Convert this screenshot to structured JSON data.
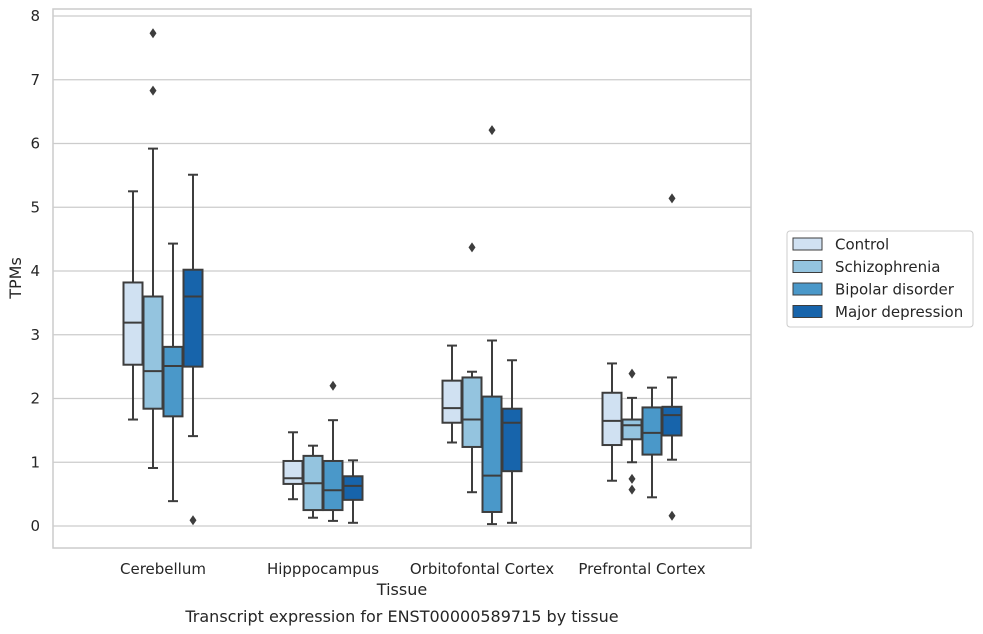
{
  "caption": "Transcript expression for ENST00000589715 by tissue",
  "chart_data": {
    "type": "box",
    "xlabel": "Tissue",
    "ylabel": "TPMs",
    "ylim": [
      -0.35,
      8.1
    ],
    "yticks": [
      "0",
      "1",
      "2",
      "3",
      "4",
      "5",
      "6",
      "7",
      "8"
    ],
    "grid": "horizontal",
    "legend_position": "right",
    "categories": [
      "Cerebellum",
      "Hipppocampus",
      "Orbitofontal Cortex",
      "Prefrontal Cortex"
    ],
    "series": [
      {
        "name": "Control",
        "color": "#d0e1f2",
        "boxes": [
          {
            "whislo": 1.67,
            "q1": 2.53,
            "med": 3.19,
            "q3": 3.82,
            "whishi": 5.25,
            "fliers": []
          },
          {
            "whislo": 0.42,
            "q1": 0.66,
            "med": 0.75,
            "q3": 1.02,
            "whishi": 1.47,
            "fliers": []
          },
          {
            "whislo": 1.31,
            "q1": 1.62,
            "med": 1.85,
            "q3": 2.28,
            "whishi": 2.83,
            "fliers": []
          },
          {
            "whislo": 0.71,
            "q1": 1.27,
            "med": 1.65,
            "q3": 2.09,
            "whishi": 2.55,
            "fliers": []
          }
        ]
      },
      {
        "name": "Schizophrenia",
        "color": "#94c4df",
        "boxes": [
          {
            "whislo": 0.91,
            "q1": 1.84,
            "med": 2.43,
            "q3": 3.6,
            "whishi": 5.92,
            "fliers": [
              6.83,
              7.73
            ]
          },
          {
            "whislo": 0.13,
            "q1": 0.25,
            "med": 0.67,
            "q3": 1.1,
            "whishi": 1.26,
            "fliers": []
          },
          {
            "whislo": 0.53,
            "q1": 1.24,
            "med": 1.67,
            "q3": 2.33,
            "whishi": 2.42,
            "fliers": [
              4.37
            ]
          },
          {
            "whislo": 1.0,
            "q1": 1.36,
            "med": 1.58,
            "q3": 1.67,
            "whishi": 2.01,
            "fliers": [
              0.57,
              0.74,
              2.39
            ]
          }
        ]
      },
      {
        "name": "Bipolar disorder",
        "color": "#4a98c9",
        "boxes": [
          {
            "whislo": 0.39,
            "q1": 1.72,
            "med": 2.51,
            "q3": 2.81,
            "whishi": 4.43,
            "fliers": []
          },
          {
            "whislo": 0.08,
            "q1": 0.25,
            "med": 0.56,
            "q3": 1.02,
            "whishi": 1.66,
            "fliers": [
              2.2
            ]
          },
          {
            "whislo": 0.03,
            "q1": 0.22,
            "med": 0.79,
            "q3": 2.03,
            "whishi": 2.91,
            "fliers": [
              6.21
            ]
          },
          {
            "whislo": 0.45,
            "q1": 1.12,
            "med": 1.46,
            "q3": 1.86,
            "whishi": 2.17,
            "fliers": []
          }
        ]
      },
      {
        "name": "Major depression",
        "color": "#1764ab",
        "boxes": [
          {
            "whislo": 1.41,
            "q1": 2.5,
            "med": 3.6,
            "q3": 4.02,
            "whishi": 5.51,
            "fliers": [
              0.09
            ]
          },
          {
            "whislo": 0.05,
            "q1": 0.41,
            "med": 0.63,
            "q3": 0.78,
            "whishi": 1.03,
            "fliers": []
          },
          {
            "whislo": 0.05,
            "q1": 0.86,
            "med": 1.62,
            "q3": 1.84,
            "whishi": 2.6,
            "fliers": []
          },
          {
            "whislo": 1.04,
            "q1": 1.42,
            "med": 1.74,
            "q3": 1.87,
            "whishi": 2.33,
            "fliers": [
              0.16,
              5.14
            ]
          }
        ]
      }
    ]
  }
}
